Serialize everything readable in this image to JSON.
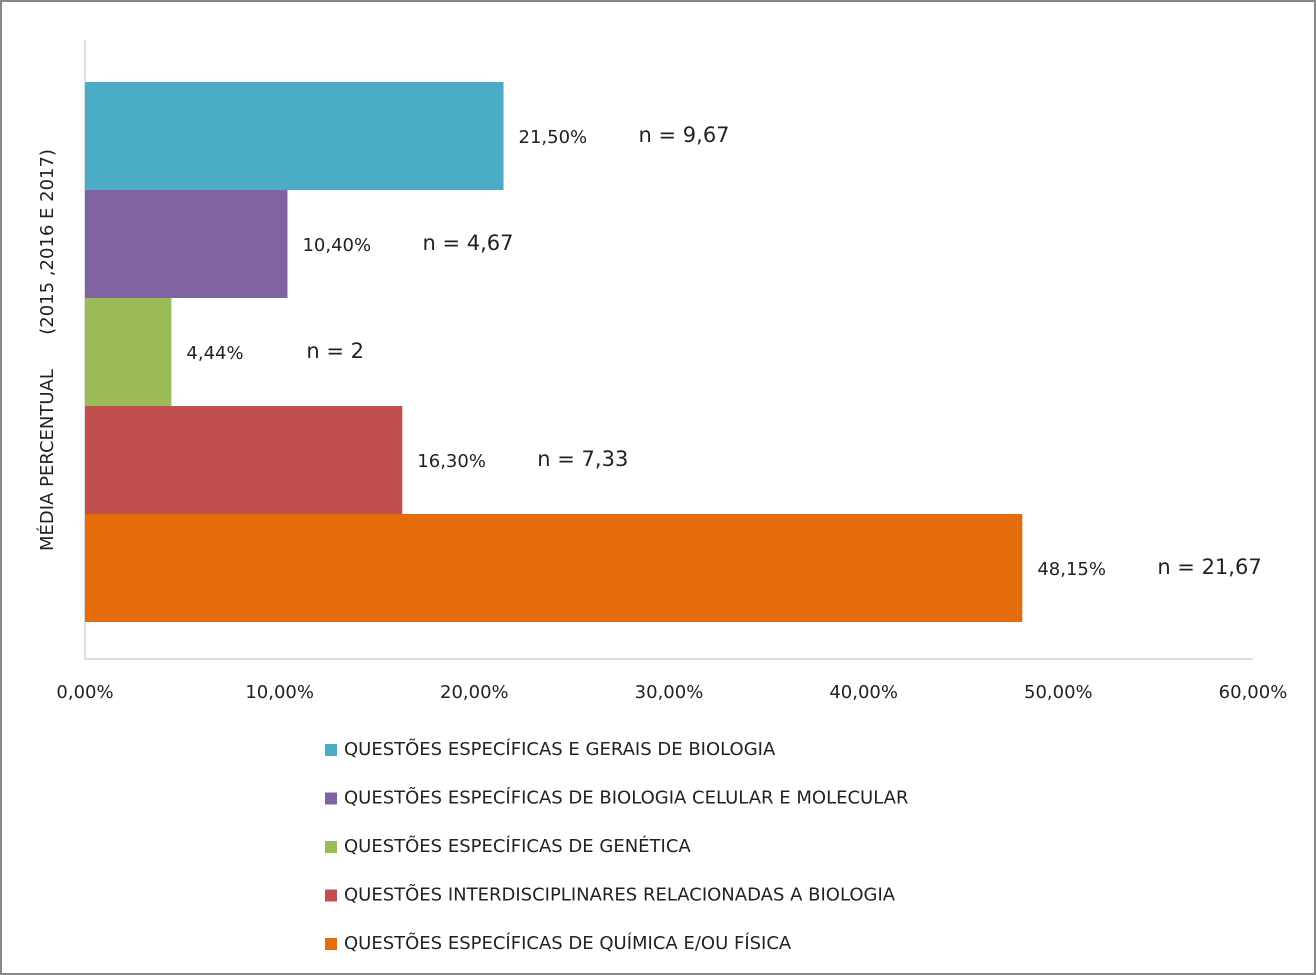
{
  "chart_data": {
    "type": "bar",
    "orientation": "horizontal",
    "y_label": "MÉDIA PERCENTUAL      (2015 ,2016 E 2017)",
    "categories": [
      null
    ],
    "series": [
      {
        "name": "QUESTÕES ESPECÍFICAS E GERAIS DE BIOLOGIA",
        "color": "#4bacc6",
        "values": [
          21.5
        ],
        "value_labels": [
          "21,50%"
        ],
        "annotation": "n = 9,67"
      },
      {
        "name": "QUESTÕES ESPECÍFICAS DE BIOLOGIA CELULAR E MOLECULAR",
        "color": "#8064a2",
        "values": [
          10.4
        ],
        "value_labels": [
          "10,40%"
        ],
        "annotation": "n = 4,67"
      },
      {
        "name": "QUESTÕES ESPECÍFICAS DE GENÉTICA",
        "color": "#9bbb59",
        "values": [
          4.44
        ],
        "value_labels": [
          "4,44%"
        ],
        "annotation": "n = 2"
      },
      {
        "name": "QUESTÕES INTERDISCIPLINARES RELACIONADAS A BIOLOGIA",
        "color": "#c0504d",
        "values": [
          16.3
        ],
        "value_labels": [
          "16,30%"
        ],
        "annotation": "n = 7,33"
      },
      {
        "name": "QUESTÕES ESPECÍFICAS DE QUÍMICA E/OU FÍSICA",
        "color": "#e46c0a",
        "values": [
          48.15
        ],
        "value_labels": [
          "48,15%"
        ],
        "annotation": "n = 21,67"
      }
    ],
    "xlim": [
      0,
      60
    ],
    "xticks": [
      {
        "value": 0,
        "label": "0,00%"
      },
      {
        "value": 10,
        "label": "10,00%"
      },
      {
        "value": 20,
        "label": "20,00%"
      },
      {
        "value": 30,
        "label": "30,00%"
      },
      {
        "value": 40,
        "label": "40,00%"
      },
      {
        "value": 50,
        "label": "50,00%"
      },
      {
        "value": 60,
        "label": "60,00%"
      }
    ],
    "grid": false,
    "legend": "bottom"
  }
}
